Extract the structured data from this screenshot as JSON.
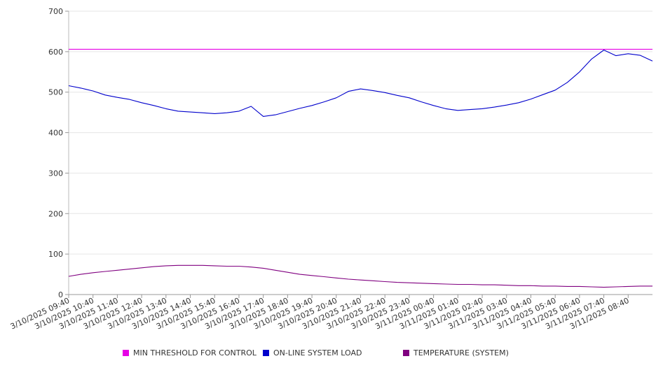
{
  "chart_data": {
    "type": "line",
    "title": "",
    "xlabel": "",
    "ylabel": "",
    "ylim": [
      0,
      700
    ],
    "y_ticks": [
      0,
      100,
      200,
      300,
      400,
      500,
      600,
      700
    ],
    "grid": "horizontal",
    "legend_position": "bottom",
    "x_start": "3/10/2025 09:40",
    "x_end": "3/11/2025 09:40",
    "x_tick_labels": [
      "3/10/2025 09:40",
      "3/10/2025 10:40",
      "3/10/2025 11:40",
      "3/10/2025 12:40",
      "3/10/2025 13:40",
      "3/10/2025 14:40",
      "3/10/2025 15:40",
      "3/10/2025 16:40",
      "3/10/2025 17:40",
      "3/10/2025 18:40",
      "3/10/2025 19:40",
      "3/10/2025 20:40",
      "3/10/2025 21:40",
      "3/10/2025 22:40",
      "3/10/2025 23:40",
      "3/11/2025 00:40",
      "3/11/2025 01:40",
      "3/11/2025 02:40",
      "3/11/2025 03:40",
      "3/11/2025 04:40",
      "3/11/2025 05:40",
      "3/11/2025 06:40",
      "3/11/2025 07:40",
      "3/11/2025 08:40"
    ],
    "x": [
      "3/10/2025 09:40",
      "3/10/2025 10:10",
      "3/10/2025 10:40",
      "3/10/2025 11:10",
      "3/10/2025 11:40",
      "3/10/2025 12:10",
      "3/10/2025 12:40",
      "3/10/2025 13:10",
      "3/10/2025 13:40",
      "3/10/2025 14:10",
      "3/10/2025 14:40",
      "3/10/2025 15:10",
      "3/10/2025 15:40",
      "3/10/2025 16:10",
      "3/10/2025 16:40",
      "3/10/2025 17:10",
      "3/10/2025 17:40",
      "3/10/2025 18:10",
      "3/10/2025 18:40",
      "3/10/2025 19:10",
      "3/10/2025 19:40",
      "3/10/2025 20:10",
      "3/10/2025 20:40",
      "3/10/2025 21:10",
      "3/10/2025 21:40",
      "3/10/2025 22:10",
      "3/10/2025 22:40",
      "3/10/2025 23:10",
      "3/10/2025 23:40",
      "3/11/2025 00:10",
      "3/11/2025 00:40",
      "3/11/2025 01:10",
      "3/11/2025 01:40",
      "3/11/2025 02:10",
      "3/11/2025 02:40",
      "3/11/2025 03:10",
      "3/11/2025 03:40",
      "3/11/2025 04:10",
      "3/11/2025 04:40",
      "3/11/2025 05:10",
      "3/11/2025 05:40",
      "3/11/2025 06:10",
      "3/11/2025 06:40",
      "3/11/2025 07:10",
      "3/11/2025 07:40",
      "3/11/2025 08:10",
      "3/11/2025 08:40",
      "3/11/2025 09:10",
      "3/11/2025 09:40"
    ],
    "series": [
      {
        "name": "MIN THRESHOLD FOR CONTROL",
        "color": "#e600e6",
        "values": [
          606,
          606,
          606,
          606,
          606,
          606,
          606,
          606,
          606,
          606,
          606,
          606,
          606,
          606,
          606,
          606,
          606,
          606,
          606,
          606,
          606,
          606,
          606,
          606,
          606,
          606,
          606,
          606,
          606,
          606,
          606,
          606,
          606,
          606,
          606,
          606,
          606,
          606,
          606,
          606,
          606,
          606,
          606,
          606,
          606,
          606,
          606,
          606,
          606
        ]
      },
      {
        "name": "ON-LINE SYSTEM LOAD",
        "color": "#0000cc",
        "values": [
          516,
          510,
          503,
          493,
          487,
          482,
          474,
          467,
          459,
          453,
          451,
          449,
          447,
          449,
          453,
          465,
          440,
          444,
          452,
          460,
          467,
          476,
          486,
          502,
          508,
          504,
          499,
          492,
          486,
          476,
          467,
          459,
          455,
          457,
          459,
          463,
          468,
          474,
          483,
          494,
          505,
          524,
          550,
          582,
          604,
          590,
          595,
          591,
          577
        ]
      },
      {
        "name": "TEMPERATURE (SYSTEM)",
        "color": "#800080",
        "values": [
          45,
          50,
          54,
          57,
          60,
          63,
          66,
          69,
          71,
          72,
          72,
          72,
          71,
          70,
          70,
          68,
          65,
          60,
          55,
          50,
          47,
          44,
          41,
          38,
          36,
          34,
          32,
          30,
          29,
          28,
          27,
          26,
          25,
          25,
          24,
          24,
          23,
          22,
          22,
          21,
          21,
          20,
          20,
          19,
          18,
          19,
          20,
          21,
          21
        ]
      }
    ]
  }
}
